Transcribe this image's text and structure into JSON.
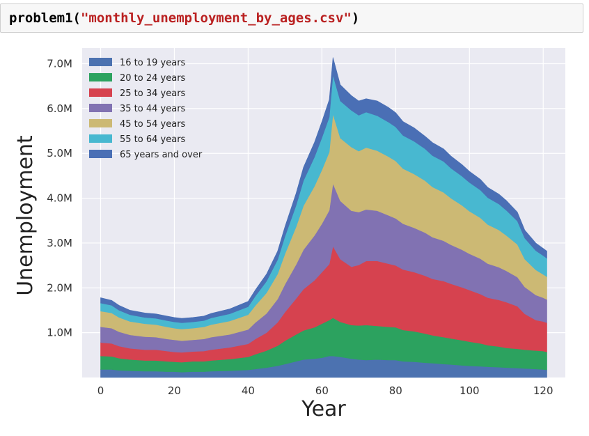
{
  "code_cell": {
    "func": "problem1(",
    "arg": "\"monthly_unemployment_by_ages.csv\"",
    "close": ")"
  },
  "chart_data": {
    "type": "area",
    "stacked": true,
    "xlabel": "Year",
    "ylabel": "Unemployment",
    "x_ticks": [
      0,
      20,
      40,
      60,
      80,
      100,
      120
    ],
    "y_ticks": [
      1000000,
      2000000,
      3000000,
      4000000,
      5000000,
      6000000,
      7000000
    ],
    "y_tick_labels": [
      "1.0M",
      "2.0M",
      "3.0M",
      "4.0M",
      "5.0M",
      "6.0M",
      "7.0M"
    ],
    "xlim": [
      -5,
      126
    ],
    "ylim": [
      0,
      7350000
    ],
    "grid": true,
    "legend_position": "top-left",
    "x": [
      0,
      3,
      5,
      8,
      12,
      15,
      18,
      20,
      22,
      25,
      28,
      30,
      35,
      40,
      42,
      45,
      48,
      50,
      53,
      55,
      58,
      60,
      62,
      63,
      65,
      68,
      70,
      72,
      75,
      78,
      80,
      82,
      85,
      88,
      90,
      93,
      95,
      98,
      100,
      103,
      105,
      108,
      110,
      113,
      115,
      118,
      120,
      121
    ],
    "series": [
      {
        "name": "16 to 19 years",
        "color": "#4c72b0",
        "values": [
          180000,
          180000,
          160000,
          150000,
          140000,
          140000,
          130000,
          130000,
          120000,
          130000,
          130000,
          140000,
          150000,
          170000,
          190000,
          220000,
          260000,
          300000,
          360000,
          400000,
          420000,
          440000,
          480000,
          480000,
          460000,
          420000,
          400000,
          390000,
          400000,
          390000,
          390000,
          360000,
          350000,
          330000,
          320000,
          300000,
          290000,
          270000,
          260000,
          250000,
          240000,
          230000,
          220000,
          210000,
          200000,
          190000,
          180000,
          170000
        ]
      },
      {
        "name": "20 to 24 years",
        "color": "#2ca25f",
        "values": [
          300000,
          290000,
          270000,
          250000,
          240000,
          240000,
          230000,
          220000,
          220000,
          230000,
          230000,
          240000,
          260000,
          290000,
          330000,
          380000,
          450000,
          520000,
          600000,
          650000,
          700000,
          760000,
          800000,
          850000,
          780000,
          750000,
          760000,
          780000,
          750000,
          740000,
          730000,
          700000,
          680000,
          650000,
          620000,
          600000,
          580000,
          560000,
          540000,
          510000,
          480000,
          460000,
          440000,
          430000,
          420000,
          410000,
          410000,
          400000
        ]
      },
      {
        "name": "25 to 34 years",
        "color": "#d6424f",
        "values": [
          300000,
          290000,
          270000,
          250000,
          240000,
          240000,
          230000,
          220000,
          220000,
          220000,
          230000,
          240000,
          260000,
          290000,
          340000,
          400000,
          520000,
          640000,
          800000,
          920000,
          1050000,
          1150000,
          1250000,
          1600000,
          1400000,
          1300000,
          1350000,
          1430000,
          1450000,
          1410000,
          1380000,
          1350000,
          1320000,
          1290000,
          1260000,
          1250000,
          1220000,
          1180000,
          1150000,
          1100000,
          1060000,
          1040000,
          1020000,
          950000,
          800000,
          680000,
          660000,
          650000
        ]
      },
      {
        "name": "35 to 44 years",
        "color": "#8172b2",
        "values": [
          350000,
          340000,
          320000,
          300000,
          290000,
          280000,
          270000,
          270000,
          260000,
          260000,
          270000,
          280000,
          290000,
          320000,
          370000,
          430000,
          520000,
          620000,
          760000,
          880000,
          1000000,
          1080000,
          1200000,
          1400000,
          1300000,
          1250000,
          1180000,
          1150000,
          1120000,
          1080000,
          1050000,
          1020000,
          990000,
          960000,
          930000,
          900000,
          870000,
          840000,
          810000,
          790000,
          760000,
          730000,
          700000,
          650000,
          600000,
          560000,
          530000,
          520000
        ]
      },
      {
        "name": "45 to 54 years",
        "color": "#ccb974",
        "values": [
          350000,
          340000,
          320000,
          300000,
          290000,
          280000,
          270000,
          260000,
          260000,
          260000,
          270000,
          280000,
          300000,
          330000,
          380000,
          460000,
          560000,
          680000,
          840000,
          980000,
          1100000,
          1200000,
          1300000,
          1550000,
          1400000,
          1420000,
          1360000,
          1380000,
          1340000,
          1310000,
          1280000,
          1230000,
          1200000,
          1160000,
          1120000,
          1080000,
          1040000,
          990000,
          950000,
          910000,
          870000,
          830000,
          790000,
          730000,
          620000,
          560000,
          520000,
          510000
        ]
      },
      {
        "name": "55 to 64 years",
        "color": "#48b8d0",
        "values": [
          180000,
          170000,
          160000,
          150000,
          140000,
          140000,
          140000,
          140000,
          140000,
          140000,
          140000,
          150000,
          160000,
          180000,
          210000,
          260000,
          320000,
          390000,
          480000,
          560000,
          650000,
          720000,
          780000,
          870000,
          830000,
          820000,
          800000,
          790000,
          780000,
          770000,
          760000,
          740000,
          730000,
          710000,
          700000,
          690000,
          670000,
          650000,
          640000,
          620000,
          600000,
          580000,
          560000,
          520000,
          470000,
          430000,
          420000,
          410000
        ]
      },
      {
        "name": "65 years and over",
        "color": "#4a6fb5",
        "values": [
          120000,
          110000,
          110000,
          100000,
          100000,
          100000,
          100000,
          100000,
          100000,
          100000,
          100000,
          100000,
          110000,
          120000,
          140000,
          160000,
          190000,
          220000,
          270000,
          300000,
          330000,
          360000,
          390000,
          390000,
          360000,
          330000,
          320000,
          300000,
          330000,
          330000,
          320000,
          310000,
          300000,
          280000,
          290000,
          280000,
          270000,
          260000,
          250000,
          240000,
          230000,
          220000,
          220000,
          200000,
          180000,
          170000,
          160000,
          160000
        ]
      }
    ]
  }
}
